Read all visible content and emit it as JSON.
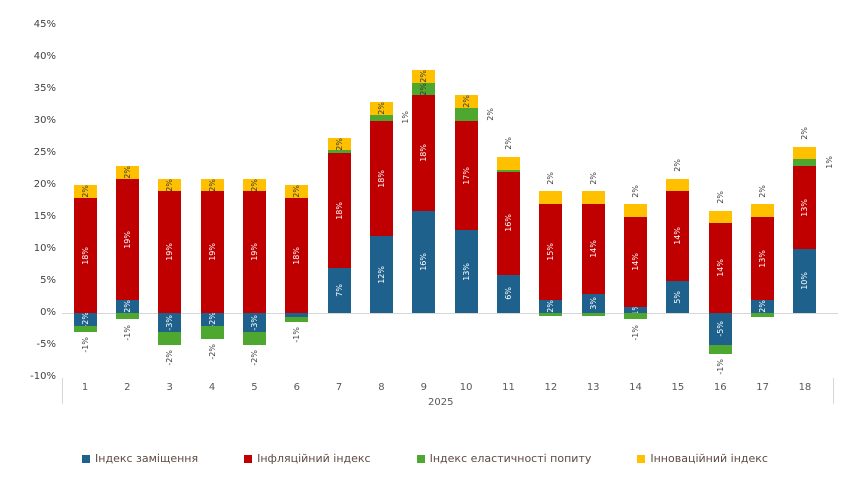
{
  "chart_data": {
    "type": "bar",
    "stacked": true,
    "title": "",
    "x_year_label": "2025",
    "categories": [
      "1",
      "2",
      "3",
      "4",
      "5",
      "6",
      "7",
      "8",
      "9",
      "10",
      "11",
      "12",
      "13",
      "14",
      "15",
      "16",
      "17",
      "18"
    ],
    "y_ticks": [
      "45%",
      "40%",
      "35%",
      "30%",
      "25%",
      "20%",
      "15%",
      "10%",
      "5%",
      "0%",
      "-5%",
      "-10%"
    ],
    "ylim": [
      -10,
      45
    ],
    "grid": "zero-line-only",
    "legend_position": "bottom",
    "series": [
      {
        "key": "substitution-index",
        "name": "Індекс заміщення",
        "color": "#1F618D",
        "label_color": "#ffffff",
        "values": [
          -2,
          2,
          -3,
          -2,
          -3,
          -1,
          7,
          12,
          16,
          13,
          6,
          2,
          3,
          1,
          5,
          -5,
          2,
          10
        ],
        "pts": [
          {
            "v": -2,
            "label": "-2%",
            "lp": "in"
          },
          {
            "v": 2,
            "label": "2%",
            "lp": "in"
          },
          {
            "v": -3,
            "label": "-3%",
            "lp": "in"
          },
          {
            "v": -2,
            "label": "-2%",
            "lp": "in"
          },
          {
            "v": -3,
            "label": "-3%",
            "lp": "in"
          },
          {
            "v": -0.7,
            "label": "",
            "lp": ""
          },
          {
            "v": 7,
            "label": "7%",
            "lp": "in"
          },
          {
            "v": 12,
            "label": "12%",
            "lp": "in"
          },
          {
            "v": 16,
            "label": "16%",
            "lp": "in"
          },
          {
            "v": 13,
            "label": "13%",
            "lp": "in"
          },
          {
            "v": 6,
            "label": "6%",
            "lp": "in"
          },
          {
            "v": 2,
            "label": "2%",
            "lp": "in"
          },
          {
            "v": 3,
            "label": "3%",
            "lp": "in"
          },
          {
            "v": 1,
            "label": "1%",
            "lp": "in"
          },
          {
            "v": 5,
            "label": "5%",
            "lp": "in"
          },
          {
            "v": -5,
            "label": "-5%",
            "lp": "in"
          },
          {
            "v": 2,
            "label": "2%",
            "lp": "in"
          },
          {
            "v": 10,
            "label": "10%",
            "lp": "in"
          }
        ]
      },
      {
        "key": "inflation-index",
        "name": "Інфляційний  індекс",
        "color": "#C00000",
        "label_color": "#ffffff",
        "values": [
          18,
          19,
          19,
          19,
          19,
          18,
          18,
          18,
          18,
          17,
          16,
          15,
          14,
          14,
          14,
          14,
          13,
          13
        ],
        "pts": [
          {
            "v": 18,
            "label": "18%",
            "lp": "in"
          },
          {
            "v": 19,
            "label": "19%",
            "lp": "in"
          },
          {
            "v": 19,
            "label": "19%",
            "lp": "in"
          },
          {
            "v": 19,
            "label": "19%",
            "lp": "in"
          },
          {
            "v": 19,
            "label": "19%",
            "lp": "in"
          },
          {
            "v": 18,
            "label": "18%",
            "lp": "in"
          },
          {
            "v": 18,
            "label": "18%",
            "lp": "in"
          },
          {
            "v": 18,
            "label": "18%",
            "lp": "in"
          },
          {
            "v": 18,
            "label": "18%",
            "lp": "in"
          },
          {
            "v": 17,
            "label": "17%",
            "lp": "in"
          },
          {
            "v": 16,
            "label": "16%",
            "lp": "in"
          },
          {
            "v": 15,
            "label": "15%",
            "lp": "in"
          },
          {
            "v": 14,
            "label": "14%",
            "lp": "in"
          },
          {
            "v": 14,
            "label": "14%",
            "lp": "in"
          },
          {
            "v": 14,
            "label": "14%",
            "lp": "in"
          },
          {
            "v": 14,
            "label": "14%",
            "lp": "in"
          },
          {
            "v": 13,
            "label": "13%",
            "lp": "in"
          },
          {
            "v": 13,
            "label": "13%",
            "lp": "in"
          }
        ]
      },
      {
        "key": "demand-elasticity-index",
        "name": "Індекс еластичності попиту",
        "color": "#4EA72E",
        "label_color": "#3d3d3d",
        "values": [
          -1,
          -1,
          -2,
          -2,
          -2,
          -1,
          0,
          1,
          2,
          2,
          0,
          -1,
          -1,
          -1,
          0,
          -1,
          -1,
          1
        ],
        "pts": [
          {
            "v": -1,
            "label": "-1%",
            "lp": "below"
          },
          {
            "v": -1,
            "label": "-1%",
            "lp": "below"
          },
          {
            "v": -2,
            "label": "-2%",
            "lp": "below"
          },
          {
            "v": -2,
            "label": "-2%",
            "lp": "below"
          },
          {
            "v": -2,
            "label": "-2%",
            "lp": "below"
          },
          {
            "v": -0.7,
            "label": "-1%",
            "lp": "below"
          },
          {
            "v": 0.4,
            "label": "",
            "lp": ""
          },
          {
            "v": 1,
            "label": "1%",
            "lp": "right"
          },
          {
            "v": 2,
            "label": "2%",
            "lp": "in"
          },
          {
            "v": 2,
            "label": "2%",
            "lp": "right"
          },
          {
            "v": 0.4,
            "label": "",
            "lp": ""
          },
          {
            "v": -0.5,
            "label": "",
            "lp": ""
          },
          {
            "v": -0.5,
            "label": "",
            "lp": ""
          },
          {
            "v": -1,
            "label": "-1%",
            "lp": "below"
          },
          {
            "v": 0,
            "label": "",
            "lp": ""
          },
          {
            "v": -1.4,
            "label": "-1%",
            "lp": "below"
          },
          {
            "v": -0.7,
            "label": "",
            "lp": ""
          },
          {
            "v": 1,
            "label": "1%",
            "lp": "right"
          }
        ]
      },
      {
        "key": "innovation-index",
        "name": "Інноваційний  індекс",
        "color": "#FFC000",
        "label_color": "#3d3d3d",
        "values": [
          2,
          2,
          2,
          2,
          2,
          2,
          2,
          2,
          2,
          2,
          2,
          2,
          2,
          2,
          2,
          2,
          2,
          2
        ],
        "pts": [
          {
            "v": 2,
            "label": "2%",
            "lp": "in"
          },
          {
            "v": 2,
            "label": "2%",
            "lp": "in"
          },
          {
            "v": 2,
            "label": "2%",
            "lp": "in"
          },
          {
            "v": 2,
            "label": "2%",
            "lp": "in"
          },
          {
            "v": 2,
            "label": "2%",
            "lp": "in"
          },
          {
            "v": 2,
            "label": "2%",
            "lp": "in"
          },
          {
            "v": 2,
            "label": "2%",
            "lp": "in"
          },
          {
            "v": 2,
            "label": "2%",
            "lp": "in"
          },
          {
            "v": 2,
            "label": "2%",
            "lp": "in"
          },
          {
            "v": 2,
            "label": "2%",
            "lp": "in"
          },
          {
            "v": 2,
            "label": "2%",
            "lp": "above"
          },
          {
            "v": 2,
            "label": "2%",
            "lp": "above"
          },
          {
            "v": 2,
            "label": "2%",
            "lp": "above"
          },
          {
            "v": 2,
            "label": "2%",
            "lp": "above"
          },
          {
            "v": 2,
            "label": "2%",
            "lp": "above"
          },
          {
            "v": 2,
            "label": "2%",
            "lp": "above"
          },
          {
            "v": 2,
            "label": "2%",
            "lp": "above"
          },
          {
            "v": 2,
            "label": "2%",
            "lp": "above"
          }
        ]
      }
    ]
  }
}
